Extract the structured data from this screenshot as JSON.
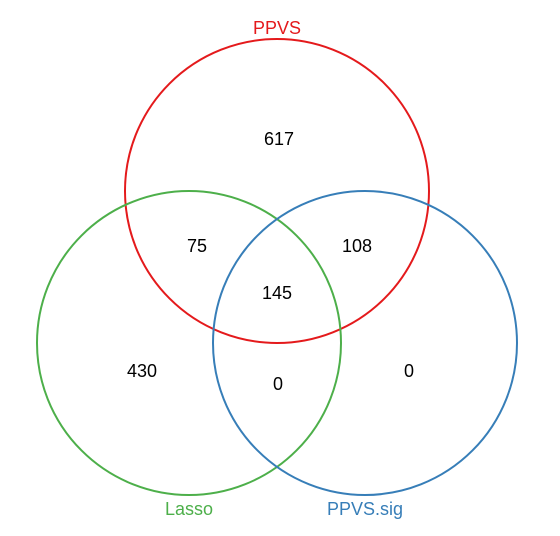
{
  "venn": {
    "sets": {
      "ppvs": {
        "label": "PPVS",
        "color": "#e41a1c"
      },
      "lasso": {
        "label": "Lasso",
        "color": "#4daf4a"
      },
      "ppvs_sig": {
        "label": "PPVS.sig",
        "color": "#377eb8"
      }
    },
    "regions": {
      "ppvs_only": "617",
      "ppvs_lasso": "75",
      "ppvs_ppvs_sig": "108",
      "all_three": "145",
      "lasso_only": "430",
      "lasso_ppvs_sig": "0",
      "ppvs_sig_only": "0"
    }
  }
}
